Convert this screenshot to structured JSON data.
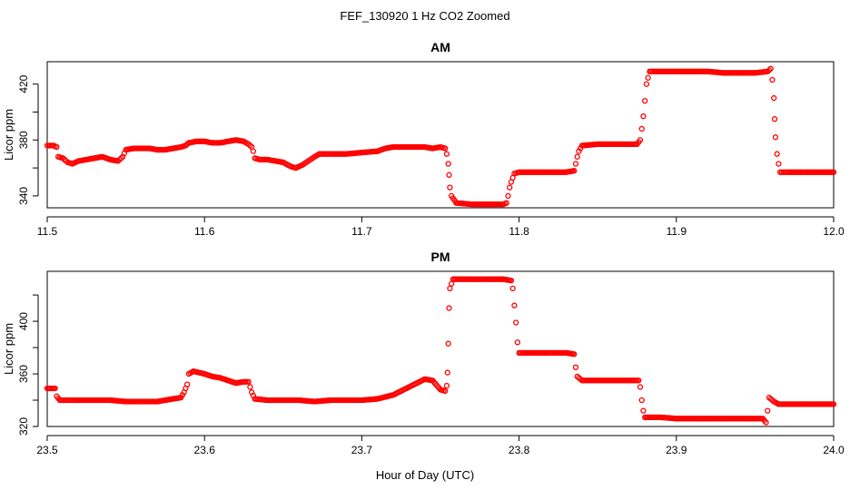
{
  "figure_title": "FEF_130920  1 Hz CO2 Zoomed",
  "x_axis_title": "Hour of Day (UTC)",
  "point_color": "#ff0000",
  "chart_data": [
    {
      "type": "scatter",
      "title": "AM",
      "ylabel": "Licor ppm",
      "xlim": [
        11.5,
        12.0
      ],
      "ylim": [
        331.5,
        436
      ],
      "x_ticks": [
        11.5,
        11.6,
        11.7,
        11.8,
        11.9,
        12.0
      ],
      "x_tick_labels": [
        "11.5",
        "11.6",
        "11.7",
        "11.8",
        "11.9",
        "12.0"
      ],
      "y_ticks": [
        340,
        360,
        380,
        400,
        420
      ],
      "y_tick_labels": [
        "340",
        "",
        "380",
        "",
        "420"
      ],
      "marker": "open-circle",
      "series_points": [
        [
          11.5,
          376
        ],
        [
          11.504,
          376
        ],
        [
          11.506,
          375
        ],
        [
          11.507,
          368
        ],
        [
          11.51,
          367
        ],
        [
          11.513,
          364
        ],
        [
          11.516,
          363
        ],
        [
          11.52,
          365
        ],
        [
          11.525,
          366
        ],
        [
          11.53,
          367
        ],
        [
          11.535,
          368
        ],
        [
          11.54,
          366
        ],
        [
          11.545,
          365
        ],
        [
          11.548,
          368
        ],
        [
          11.55,
          373
        ],
        [
          11.555,
          374
        ],
        [
          11.56,
          374
        ],
        [
          11.565,
          374
        ],
        [
          11.57,
          373
        ],
        [
          11.575,
          373
        ],
        [
          11.58,
          374
        ],
        [
          11.585,
          375
        ],
        [
          11.588,
          376
        ],
        [
          11.59,
          378
        ],
        [
          11.595,
          379
        ],
        [
          11.6,
          379
        ],
        [
          11.605,
          378
        ],
        [
          11.61,
          378
        ],
        [
          11.615,
          379
        ],
        [
          11.62,
          380
        ],
        [
          11.625,
          379
        ],
        [
          11.628,
          377
        ],
        [
          11.63,
          375
        ],
        [
          11.631,
          372
        ],
        [
          11.632,
          367
        ],
        [
          11.635,
          366
        ],
        [
          11.64,
          366
        ],
        [
          11.645,
          365
        ],
        [
          11.65,
          364
        ],
        [
          11.655,
          361
        ],
        [
          11.658,
          360
        ],
        [
          11.662,
          362
        ],
        [
          11.666,
          365
        ],
        [
          11.67,
          368
        ],
        [
          11.673,
          370
        ],
        [
          11.68,
          370
        ],
        [
          11.69,
          370
        ],
        [
          11.7,
          371
        ],
        [
          11.71,
          372
        ],
        [
          11.715,
          374
        ],
        [
          11.72,
          375
        ],
        [
          11.73,
          375
        ],
        [
          11.74,
          375
        ],
        [
          11.745,
          374
        ],
        [
          11.75,
          375
        ],
        [
          11.753,
          374
        ],
        [
          11.754,
          370
        ],
        [
          11.755,
          363
        ],
        [
          11.7555,
          355
        ],
        [
          11.756,
          346
        ],
        [
          11.757,
          340
        ],
        [
          11.76,
          335
        ],
        [
          11.77,
          334
        ],
        [
          11.78,
          334
        ],
        [
          11.79,
          334
        ],
        [
          11.792,
          335
        ],
        [
          11.793,
          340
        ],
        [
          11.794,
          346
        ],
        [
          11.795,
          350
        ],
        [
          11.797,
          356
        ],
        [
          11.8,
          357
        ],
        [
          11.81,
          357
        ],
        [
          11.82,
          357
        ],
        [
          11.83,
          357
        ],
        [
          11.835,
          358
        ],
        [
          11.836,
          363
        ],
        [
          11.837,
          368
        ],
        [
          11.838,
          372
        ],
        [
          11.84,
          376
        ],
        [
          11.85,
          377
        ],
        [
          11.86,
          377
        ],
        [
          11.87,
          377
        ],
        [
          11.875,
          377
        ],
        [
          11.877,
          380
        ],
        [
          11.878,
          388
        ],
        [
          11.879,
          397
        ],
        [
          11.88,
          408
        ],
        [
          11.881,
          420
        ],
        [
          11.883,
          429
        ],
        [
          11.89,
          429
        ],
        [
          11.9,
          429
        ],
        [
          11.91,
          429
        ],
        [
          11.92,
          429
        ],
        [
          11.93,
          428
        ],
        [
          11.94,
          428
        ],
        [
          11.95,
          428
        ],
        [
          11.958,
          429
        ],
        [
          11.96,
          431
        ],
        [
          11.961,
          423
        ],
        [
          11.962,
          410
        ],
        [
          11.9625,
          395
        ],
        [
          11.963,
          382
        ],
        [
          11.964,
          370
        ],
        [
          11.965,
          363
        ],
        [
          11.966,
          357
        ],
        [
          11.97,
          357
        ],
        [
          11.98,
          357
        ],
        [
          11.99,
          357
        ],
        [
          12.0,
          357
        ]
      ]
    },
    {
      "type": "scatter",
      "title": "PM",
      "ylabel": "Licor ppm",
      "xlim": [
        23.5,
        24.0
      ],
      "ylim": [
        320,
        438
      ],
      "x_ticks": [
        23.5,
        23.6,
        23.7,
        23.8,
        23.9,
        24.0
      ],
      "x_tick_labels": [
        "23.5",
        "23.6",
        "23.7",
        "23.8",
        "23.9",
        "24.0"
      ],
      "y_ticks": [
        320,
        340,
        360,
        380,
        400,
        420
      ],
      "y_tick_labels": [
        "320",
        "",
        "360",
        "",
        "400",
        ""
      ],
      "marker": "open-circle",
      "series_points": [
        [
          23.5,
          349
        ],
        [
          23.505,
          349
        ],
        [
          23.506,
          343
        ],
        [
          23.508,
          340
        ],
        [
          23.52,
          340
        ],
        [
          23.53,
          340
        ],
        [
          23.54,
          340
        ],
        [
          23.55,
          339
        ],
        [
          23.56,
          339
        ],
        [
          23.57,
          339
        ],
        [
          23.58,
          341
        ],
        [
          23.585,
          342
        ],
        [
          23.587,
          346
        ],
        [
          23.589,
          352
        ],
        [
          23.59,
          360
        ],
        [
          23.593,
          362
        ],
        [
          23.6,
          360
        ],
        [
          23.605,
          358
        ],
        [
          23.61,
          357
        ],
        [
          23.615,
          355
        ],
        [
          23.62,
          353
        ],
        [
          23.625,
          354
        ],
        [
          23.628,
          354
        ],
        [
          23.629,
          350
        ],
        [
          23.63,
          346
        ],
        [
          23.632,
          341
        ],
        [
          23.64,
          340
        ],
        [
          23.65,
          340
        ],
        [
          23.66,
          340
        ],
        [
          23.67,
          339
        ],
        [
          23.68,
          340
        ],
        [
          23.69,
          340
        ],
        [
          23.7,
          340
        ],
        [
          23.71,
          341
        ],
        [
          23.72,
          344
        ],
        [
          23.73,
          350
        ],
        [
          23.74,
          356
        ],
        [
          23.745,
          355
        ],
        [
          23.75,
          348
        ],
        [
          23.753,
          347
        ],
        [
          23.754,
          351
        ],
        [
          23.7545,
          361
        ],
        [
          23.755,
          383
        ],
        [
          23.7555,
          410
        ],
        [
          23.756,
          425
        ],
        [
          23.758,
          432
        ],
        [
          23.77,
          432
        ],
        [
          23.78,
          432
        ],
        [
          23.79,
          432
        ],
        [
          23.795,
          431
        ],
        [
          23.796,
          425
        ],
        [
          23.797,
          412
        ],
        [
          23.798,
          399
        ],
        [
          23.799,
          384
        ],
        [
          23.8,
          376
        ],
        [
          23.81,
          376
        ],
        [
          23.82,
          376
        ],
        [
          23.83,
          376
        ],
        [
          23.835,
          375
        ],
        [
          23.836,
          365
        ],
        [
          23.837,
          358
        ],
        [
          23.84,
          355
        ],
        [
          23.85,
          355
        ],
        [
          23.86,
          355
        ],
        [
          23.87,
          355
        ],
        [
          23.876,
          355
        ],
        [
          23.877,
          350
        ],
        [
          23.878,
          340
        ],
        [
          23.879,
          332
        ],
        [
          23.88,
          327
        ],
        [
          23.89,
          327
        ],
        [
          23.9,
          326
        ],
        [
          23.91,
          326
        ],
        [
          23.92,
          326
        ],
        [
          23.93,
          326
        ],
        [
          23.94,
          326
        ],
        [
          23.95,
          326
        ],
        [
          23.955,
          326
        ],
        [
          23.957,
          323
        ],
        [
          23.958,
          332
        ],
        [
          23.959,
          342
        ],
        [
          23.962,
          339
        ],
        [
          23.965,
          337
        ],
        [
          23.97,
          337
        ],
        [
          23.98,
          337
        ],
        [
          23.99,
          337
        ],
        [
          24.0,
          337
        ]
      ]
    }
  ]
}
